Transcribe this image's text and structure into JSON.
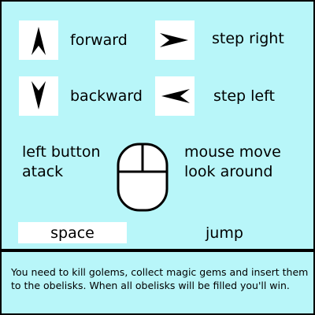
{
  "controls": {
    "forward": {
      "label": "forward",
      "icon": "arrow-up-icon"
    },
    "backward": {
      "label": "backward",
      "icon": "arrow-down-icon"
    },
    "step_right": {
      "label": "step right",
      "icon": "arrow-right-icon"
    },
    "step_left": {
      "label": "step left",
      "icon": "arrow-left-icon"
    },
    "left_button": {
      "line1": "left button",
      "line2": "atack"
    },
    "mouse_move": {
      "line1": "mouse move",
      "line2": "look around",
      "icon": "mouse-icon"
    },
    "space": {
      "key": "space",
      "action": "jump"
    }
  },
  "info": {
    "text": "You need to kill golems, collect magic gems and insert them to the obelisks. When all obelisks will be filled you'll win."
  },
  "colors": {
    "panel_bg": "#b8f6f9",
    "border": "#000000",
    "keycap": "#ffffff"
  }
}
